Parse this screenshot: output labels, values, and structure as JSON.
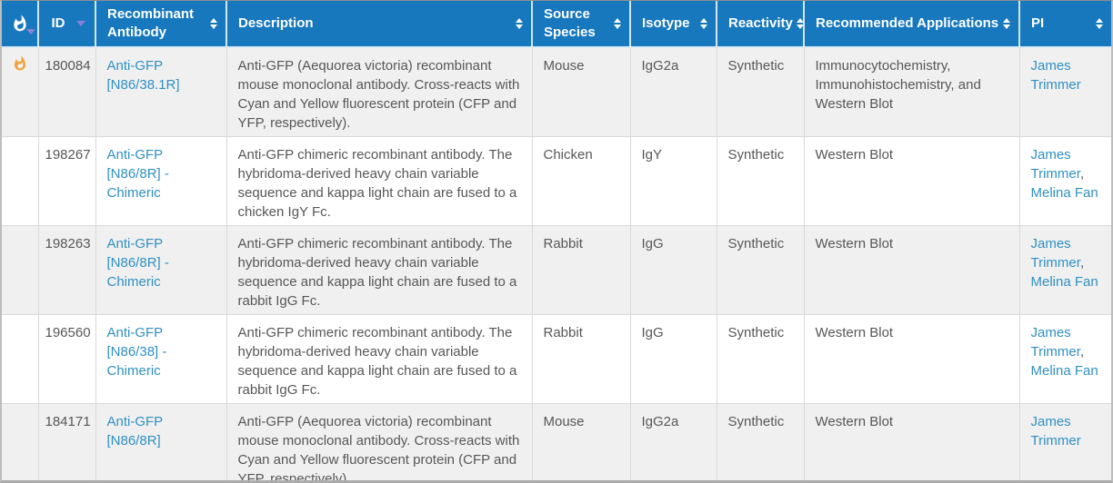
{
  "colors": {
    "header_bg": "#1778be",
    "header_text": "#ffffff",
    "link_blue": "#3090c2",
    "body_text": "#575757",
    "alt_row_bg": "#f0f0f0",
    "flame_orange": "#f0a33f",
    "sort_arrow_purple": "#8c7fd6",
    "divider_gray": "#d9d9d9"
  },
  "table": {
    "columns": [
      {
        "id": "hot",
        "label": "",
        "icon": "flame-icon",
        "sort_indicator": "descending"
      },
      {
        "id": "id",
        "label": "ID",
        "sort_indicator": "descending"
      },
      {
        "id": "antibody",
        "label": "Recombinant Antibody",
        "sort_indicator": "both"
      },
      {
        "id": "description",
        "label": "Description",
        "sort_indicator": "both"
      },
      {
        "id": "source",
        "label": "Source Species",
        "sort_indicator": "both"
      },
      {
        "id": "isotype",
        "label": "Isotype",
        "sort_indicator": "both"
      },
      {
        "id": "reactivity",
        "label": "Reactivity",
        "sort_indicator": "both"
      },
      {
        "id": "applications",
        "label": "Recommended Applications",
        "sort_indicator": "both"
      },
      {
        "id": "pi",
        "label": "PI",
        "sort_indicator": "both"
      }
    ],
    "rows": [
      {
        "hot": true,
        "id": "180084",
        "antibody": "Anti-GFP [N86/38.1R]",
        "description": "Anti-GFP (Aequorea victoria) recombinant mouse monoclonal antibody. Cross-reacts with Cyan and Yellow fluorescent protein (CFP and YFP, respectively).",
        "source": "Mouse",
        "isotype": "IgG2a",
        "reactivity": "Synthetic",
        "applications": "Immunocytochemistry, Immunohistochemistry, and Western Blot",
        "pi": [
          "James Trimmer"
        ]
      },
      {
        "hot": false,
        "id": "198267",
        "antibody": "Anti-GFP [N86/8R] - Chimeric",
        "description": "Anti-GFP chimeric recombinant antibody. The hybridoma-derived heavy chain variable sequence and kappa light chain are fused to a chicken IgY Fc.",
        "source": "Chicken",
        "isotype": "IgY",
        "reactivity": "Synthetic",
        "applications": "Western Blot",
        "pi": [
          "James Trimmer",
          "Melina Fan"
        ]
      },
      {
        "hot": false,
        "id": "198263",
        "antibody": "Anti-GFP [N86/8R] - Chimeric",
        "description": "Anti-GFP chimeric recombinant antibody. The hybridoma-derived heavy chain variable sequence and kappa light chain are fused to a rabbit IgG Fc.",
        "source": "Rabbit",
        "isotype": "IgG",
        "reactivity": "Synthetic",
        "applications": "Western Blot",
        "pi": [
          "James Trimmer",
          "Melina Fan"
        ]
      },
      {
        "hot": false,
        "id": "196560",
        "antibody": "Anti-GFP [N86/38] - Chimeric",
        "description": "Anti-GFP chimeric recombinant antibody. The hybridoma-derived heavy chain variable sequence and kappa light chain are fused to a rabbit IgG Fc.",
        "source": "Rabbit",
        "isotype": "IgG",
        "reactivity": "Synthetic",
        "applications": "Western Blot",
        "pi": [
          "James Trimmer",
          "Melina Fan"
        ]
      },
      {
        "hot": false,
        "id": "184171",
        "antibody": "Anti-GFP [N86/8R]",
        "description": "Anti-GFP (Aequorea victoria) recombinant mouse monoclonal antibody. Cross-reacts with Cyan and Yellow fluorescent protein (CFP and YFP, respectively).",
        "source": "Mouse",
        "isotype": "IgG2a",
        "reactivity": "Synthetic",
        "applications": "Western Blot",
        "pi": [
          "James Trimmer"
        ]
      }
    ]
  }
}
